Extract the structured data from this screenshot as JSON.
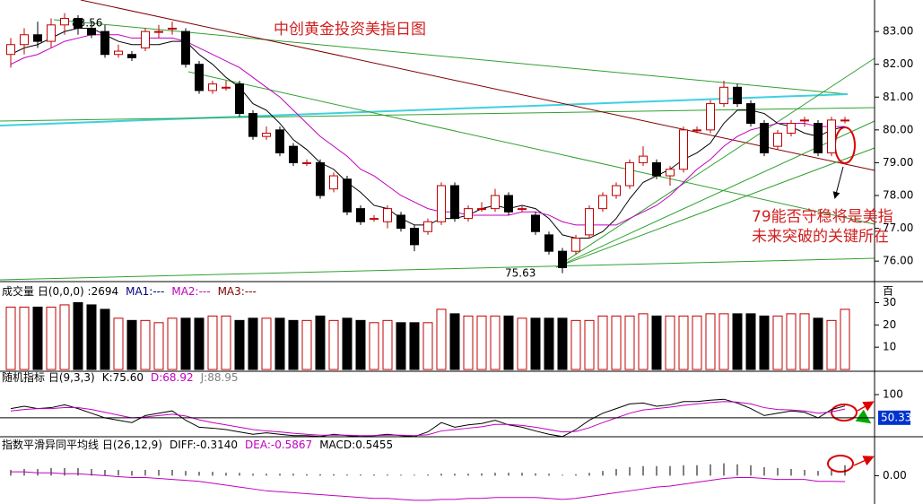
{
  "chart_data": [
    {
      "type": "candlestick",
      "title": "中创黄金投资美指日图",
      "annotation": [
        "79能否守稳将是美指",
        "未来突破的关键所在"
      ],
      "high": 83.56,
      "low": 75.63,
      "ylim": [
        75.43,
        83.96
      ],
      "yticks": [
        {
          "value": 76,
          "label": "76.00"
        },
        {
          "value": 77,
          "label": "77.00"
        },
        {
          "value": 78,
          "label": "78.00"
        },
        {
          "value": 79,
          "label": "79.00"
        },
        {
          "value": 80,
          "label": "80.00"
        },
        {
          "value": 81,
          "label": "81.00"
        },
        {
          "value": 82,
          "label": "82.00"
        },
        {
          "value": 83,
          "label": "83.00"
        }
      ],
      "up_color": "#c00000",
      "down_color": "#000000",
      "ohlc": [
        [
          82.3,
          82.8,
          81.9,
          82.6
        ],
        [
          82.6,
          83.1,
          82.3,
          82.9
        ],
        [
          82.9,
          83.3,
          82.5,
          82.7
        ],
        [
          82.7,
          83.4,
          82.5,
          83.2
        ],
        [
          83.2,
          83.56,
          82.9,
          83.4
        ],
        [
          83.4,
          83.5,
          82.9,
          83.1
        ],
        [
          83.1,
          83.3,
          82.8,
          82.9
        ],
        [
          83.0,
          83.2,
          82.2,
          82.3
        ],
        [
          82.3,
          82.6,
          82.2,
          82.4
        ],
        [
          82.3,
          82.4,
          82.1,
          82.2
        ],
        [
          82.5,
          83.1,
          82.4,
          83.0
        ],
        [
          83.0,
          83.2,
          82.8,
          83.0
        ],
        [
          83.1,
          83.3,
          82.9,
          83.1
        ],
        [
          83.0,
          83.1,
          81.9,
          82.0
        ],
        [
          82.0,
          82.1,
          81.1,
          81.2
        ],
        [
          81.2,
          81.5,
          81.1,
          81.4
        ],
        [
          81.3,
          81.5,
          81.2,
          81.3
        ],
        [
          81.4,
          81.5,
          80.4,
          80.5
        ],
        [
          80.5,
          80.6,
          79.7,
          79.8
        ],
        [
          79.8,
          80.1,
          79.7,
          79.9
        ],
        [
          80.0,
          80.1,
          79.2,
          79.3
        ],
        [
          79.5,
          79.6,
          78.9,
          79.0
        ],
        [
          79.0,
          79.1,
          78.9,
          79.0
        ],
        [
          79.0,
          79.1,
          77.9,
          78.0
        ],
        [
          78.2,
          78.7,
          78.1,
          78.6
        ],
        [
          78.5,
          78.6,
          77.4,
          77.5
        ],
        [
          77.6,
          77.7,
          77.1,
          77.2
        ],
        [
          77.3,
          77.4,
          77.2,
          77.3
        ],
        [
          77.2,
          77.7,
          77.0,
          77.6
        ],
        [
          77.4,
          77.5,
          76.9,
          77.0
        ],
        [
          77.0,
          77.1,
          76.3,
          76.5
        ],
        [
          76.9,
          77.3,
          76.8,
          77.2
        ],
        [
          77.2,
          78.4,
          77.1,
          78.3
        ],
        [
          78.3,
          78.4,
          77.2,
          77.3
        ],
        [
          77.3,
          77.7,
          77.2,
          77.6
        ],
        [
          77.6,
          77.8,
          77.5,
          77.6
        ],
        [
          77.6,
          78.2,
          77.5,
          78.0
        ],
        [
          78.0,
          78.1,
          77.4,
          77.5
        ],
        [
          77.6,
          77.7,
          77.5,
          77.6
        ],
        [
          77.4,
          77.5,
          76.8,
          76.9
        ],
        [
          76.8,
          76.9,
          76.2,
          76.3
        ],
        [
          76.3,
          76.4,
          75.63,
          75.8
        ],
        [
          76.3,
          76.8,
          76.2,
          76.7
        ],
        [
          76.8,
          77.7,
          76.7,
          77.6
        ],
        [
          77.6,
          78.1,
          77.5,
          78.0
        ],
        [
          78.0,
          78.4,
          77.9,
          78.3
        ],
        [
          78.3,
          79.1,
          78.2,
          79.0
        ],
        [
          79.0,
          79.5,
          78.9,
          79.2
        ],
        [
          79.0,
          79.1,
          78.5,
          78.6
        ],
        [
          78.6,
          78.9,
          78.3,
          78.8
        ],
        [
          78.8,
          80.1,
          78.7,
          80.0
        ],
        [
          80.0,
          80.1,
          79.9,
          80.0
        ],
        [
          80.0,
          80.9,
          79.9,
          80.8
        ],
        [
          80.8,
          81.5,
          80.7,
          81.3
        ],
        [
          81.3,
          81.4,
          80.7,
          80.8
        ],
        [
          80.8,
          80.9,
          80.1,
          80.2
        ],
        [
          80.2,
          80.3,
          79.2,
          79.3
        ],
        [
          79.5,
          80.0,
          79.4,
          79.9
        ],
        [
          79.9,
          80.3,
          79.8,
          80.2
        ],
        [
          80.3,
          80.4,
          80.1,
          80.3
        ],
        [
          80.2,
          80.3,
          79.2,
          79.3
        ],
        [
          79.3,
          80.4,
          79.2,
          80.3
        ],
        [
          80.3,
          80.4,
          80.2,
          80.3
        ]
      ],
      "lines": [
        {
          "color": "#000000",
          "values": [
            82.3,
            82.5,
            82.6,
            82.8,
            83.0,
            83.1,
            83.1,
            82.9,
            82.7,
            82.6,
            82.6,
            82.6,
            82.7,
            82.7,
            82.3,
            82.0,
            81.6,
            81.3,
            80.8,
            80.6,
            80.2,
            79.7,
            79.4,
            79.0,
            78.8,
            78.4,
            78.1,
            77.7,
            77.6,
            77.3,
            77.1,
            77.1,
            77.3,
            77.3,
            77.4,
            77.6,
            77.7,
            77.6,
            77.7,
            77.6,
            77.3,
            76.8,
            76.7,
            76.7,
            76.9,
            77.3,
            77.9,
            78.4,
            78.6,
            78.8,
            79.1,
            79.3,
            79.6,
            80.2,
            80.6,
            80.6,
            80.5,
            80.2,
            80.1,
            79.9,
            79.8,
            80.0,
            80.1
          ]
        },
        {
          "color": "#c000c0",
          "values": [
            82.0,
            82.2,
            82.3,
            82.5,
            82.7,
            82.8,
            82.9,
            82.9,
            82.9,
            82.8,
            82.8,
            82.8,
            82.8,
            82.7,
            82.5,
            82.3,
            82.1,
            81.9,
            81.6,
            81.3,
            81.0,
            80.6,
            80.2,
            79.8,
            79.5,
            79.2,
            78.8,
            78.6,
            78.3,
            78.0,
            77.8,
            77.6,
            77.5,
            77.5,
            77.4,
            77.4,
            77.4,
            77.4,
            77.5,
            77.5,
            77.4,
            77.2,
            77.1,
            77.1,
            77.1,
            77.1,
            77.3,
            77.5,
            77.7,
            78.0,
            78.4,
            78.8,
            79.1,
            79.5,
            79.8,
            80.0,
            80.1,
            80.2,
            80.2,
            80.2,
            80.1,
            80.1,
            80.1
          ]
        }
      ]
    },
    {
      "type": "bar",
      "header": [
        "成交量 日(0,0,0) :2694",
        "MA1:---",
        "MA2:---",
        "MA3:---"
      ],
      "header_colors": [
        "#000000",
        "#000080",
        "#c000c0",
        "#800000"
      ],
      "unit": "百",
      "ylim": [
        0,
        33
      ],
      "yticks": [
        10,
        20,
        30
      ],
      "values": [
        28,
        28,
        28,
        28,
        29,
        30,
        29,
        27,
        23,
        22,
        22,
        21,
        23,
        23,
        23,
        24,
        24,
        22,
        23,
        23,
        23,
        22,
        22,
        24,
        22,
        23,
        22,
        21,
        22,
        21,
        21,
        21,
        27,
        25,
        24,
        24,
        24,
        24,
        23,
        23,
        23,
        23,
        22,
        22,
        24,
        24,
        24,
        25,
        24,
        24,
        24,
        24,
        25,
        25,
        25,
        25,
        24,
        24,
        25,
        25,
        23,
        22,
        27
      ]
    },
    {
      "type": "line",
      "header": [
        "随机指标 日(9,3,3)",
        "K:75.60",
        "D:68.92",
        "J:88.95"
      ],
      "header_colors": [
        "#000000",
        "#000000",
        "#c000c0",
        "#808080"
      ],
      "ylim": [
        0,
        100
      ],
      "yticks": [
        100
      ],
      "current": 50.33,
      "series": [
        {
          "color": "#000000",
          "values": [
            70,
            75,
            70,
            72,
            78,
            70,
            60,
            50,
            45,
            40,
            55,
            60,
            65,
            45,
            30,
            28,
            25,
            20,
            15,
            18,
            15,
            12,
            12,
            10,
            15,
            12,
            10,
            12,
            15,
            12,
            10,
            20,
            40,
            30,
            35,
            38,
            45,
            35,
            30,
            22,
            15,
            10,
            25,
            45,
            60,
            70,
            80,
            82,
            75,
            78,
            85,
            85,
            88,
            90,
            82,
            70,
            55,
            60,
            65,
            62,
            50,
            68,
            75.6
          ]
        },
        {
          "color": "#c000c0",
          "values": [
            65,
            68,
            70,
            70,
            72,
            72,
            68,
            62,
            56,
            50,
            52,
            55,
            58,
            54,
            46,
            40,
            35,
            30,
            25,
            22,
            20,
            17,
            15,
            13,
            13,
            13,
            12,
            12,
            13,
            13,
            12,
            14,
            22,
            25,
            28,
            31,
            36,
            36,
            34,
            30,
            25,
            20,
            21,
            29,
            40,
            50,
            60,
            67,
            70,
            73,
            77,
            80,
            83,
            85,
            84,
            80,
            72,
            68,
            67,
            65,
            60,
            63,
            68.9
          ]
        }
      ]
    },
    {
      "type": "macd",
      "header": [
        "指数平滑异同平均线 日(26,12,9)",
        "DIFF:-0.3140",
        "DEA:-0.5867",
        "MACD:0.5455"
      ],
      "header_colors": [
        "#000000",
        "#000000",
        "#c000c0",
        "#000000"
      ],
      "ylim": [
        -1.4,
        1.2
      ],
      "yticks": [
        {
          "value": 0,
          "label": "0.00"
        }
      ],
      "hist": [
        0.3,
        0.35,
        0.35,
        0.4,
        0.4,
        0.4,
        0.35,
        0.3,
        0.3,
        0.25,
        0.3,
        0.3,
        0.3,
        0.25,
        0.2,
        0.2,
        0.15,
        0.15,
        0.1,
        0.1,
        0.1,
        0.1,
        0.08,
        0.08,
        0.08,
        0.06,
        0.06,
        0.06,
        0.06,
        0.05,
        0.05,
        0.06,
        0.1,
        0.1,
        0.1,
        0.12,
        0.15,
        0.15,
        0.15,
        0.12,
        0.1,
        0.05,
        0.08,
        0.15,
        0.25,
        0.35,
        0.45,
        0.5,
        0.5,
        0.5,
        0.55,
        0.55,
        0.6,
        0.65,
        0.6,
        0.55,
        0.45,
        0.4,
        0.35,
        0.3,
        0.25,
        0.3,
        0.55
      ],
      "diff": [
        0.2,
        0.2,
        0.15,
        0.15,
        0.1,
        0.1,
        0.05,
        0,
        -0.05,
        -0.1,
        -0.1,
        -0.15,
        -0.2,
        -0.25,
        -0.3,
        -0.4,
        -0.5,
        -0.6,
        -0.7,
        -0.8,
        -0.85,
        -0.9,
        -0.95,
        -1.0,
        -1.05,
        -1.1,
        -1.15,
        -1.2,
        -1.2,
        -1.25,
        -1.3,
        -1.3,
        -1.25,
        -1.25,
        -1.2,
        -1.2,
        -1.15,
        -1.15,
        -1.15,
        -1.15,
        -1.2,
        -1.25,
        -1.2,
        -1.1,
        -1.0,
        -0.9,
        -0.8,
        -0.7,
        -0.6,
        -0.55,
        -0.45,
        -0.35,
        -0.25,
        -0.15,
        -0.1,
        -0.1,
        -0.15,
        -0.2,
        -0.2,
        -0.2,
        -0.3,
        -0.3,
        -0.31
      ],
      "color": "#c000c0"
    }
  ]
}
